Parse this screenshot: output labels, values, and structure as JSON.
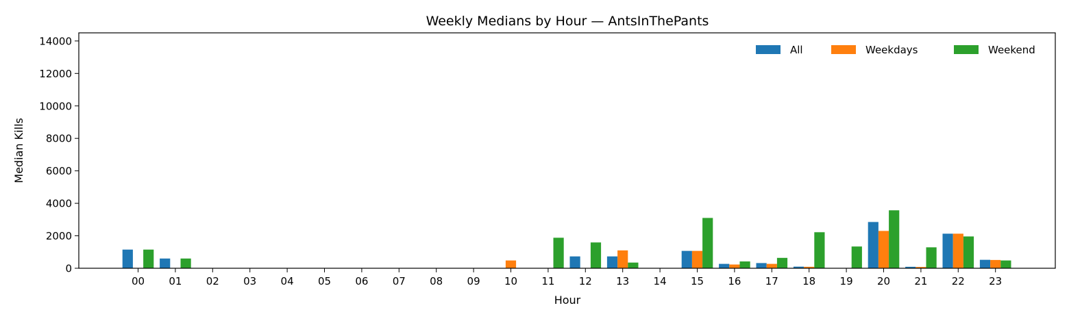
{
  "chart_data": {
    "type": "bar",
    "title": "Weekly Medians by Hour — AntsInThePants",
    "xlabel": "Hour",
    "ylabel": "Median Kills",
    "ylim": [
      0,
      14500
    ],
    "yticks": [
      0,
      2000,
      4000,
      6000,
      8000,
      10000,
      12000,
      14000
    ],
    "grid": false,
    "legend_position": "top-right",
    "categories": [
      "00",
      "01",
      "02",
      "03",
      "04",
      "05",
      "06",
      "07",
      "08",
      "09",
      "10",
      "11",
      "12",
      "13",
      "14",
      "15",
      "16",
      "17",
      "18",
      "19",
      "20",
      "21",
      "22",
      "23"
    ],
    "series": [
      {
        "name": "All",
        "color": "#1f77b4",
        "values": [
          1150,
          600,
          0,
          0,
          0,
          0,
          0,
          0,
          0,
          0,
          0,
          0,
          730,
          730,
          0,
          1070,
          270,
          320,
          100,
          0,
          2850,
          90,
          2130,
          520
        ]
      },
      {
        "name": "Weekdays",
        "color": "#ff7f0e",
        "values": [
          0,
          0,
          0,
          0,
          0,
          0,
          0,
          0,
          0,
          0,
          480,
          0,
          0,
          1100,
          0,
          1070,
          230,
          270,
          90,
          0,
          2300,
          80,
          2130,
          510
        ]
      },
      {
        "name": "Weekend",
        "color": "#2ca02c",
        "values": [
          1150,
          600,
          0,
          0,
          0,
          0,
          0,
          0,
          0,
          0,
          0,
          1880,
          1590,
          350,
          0,
          3100,
          420,
          640,
          2220,
          1340,
          3570,
          1290,
          1960,
          480
        ]
      }
    ]
  }
}
